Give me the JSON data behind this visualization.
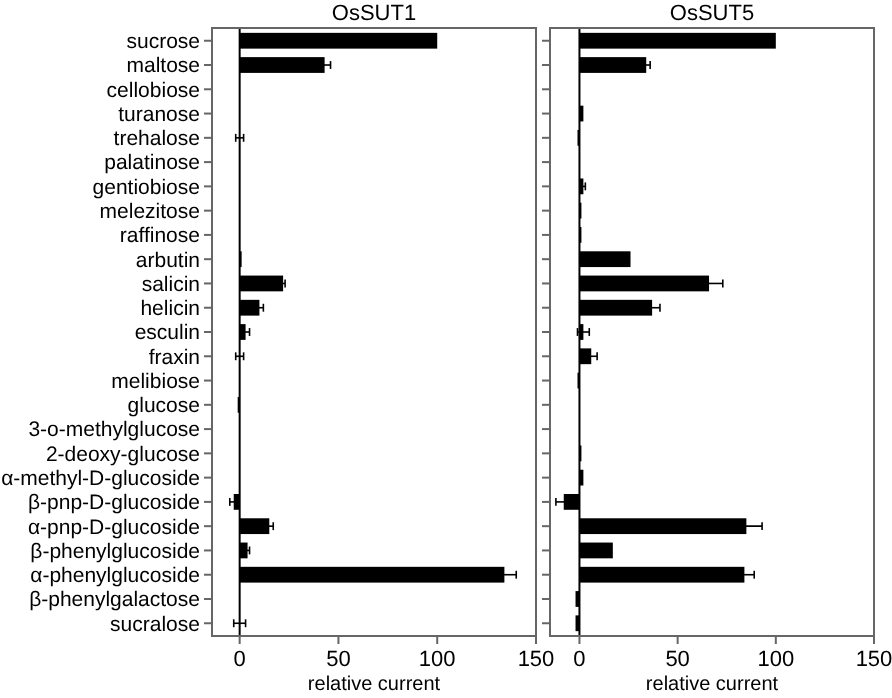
{
  "chart_data": [
    {
      "type": "bar",
      "orientation": "horizontal",
      "title": "OsSUT1",
      "xlabel": "relative current",
      "categories": [
        "sucrose",
        "maltose",
        "cellobiose",
        "turanose",
        "trehalose",
        "palatinose",
        "gentiobiose",
        "melezitose",
        "raffinose",
        "arbutin",
        "salicin",
        "helicin",
        "esculin",
        "fraxin",
        "melibiose",
        "glucose",
        "3-o-methylglucose",
        "2-deoxy-glucose",
        "α-methyl-D-glucoside",
        "β-pnp-D-glucoside",
        "α-pnp-D-glucoside",
        "β-phenylglucoside",
        "α-phenylglucoside",
        "β-phenylgalactose",
        "sucralose"
      ],
      "values": [
        100,
        43,
        0,
        0,
        0,
        0,
        0,
        0,
        0,
        1,
        22,
        10,
        3,
        0,
        0,
        -1,
        0,
        0,
        0,
        -3,
        15,
        4,
        134,
        0,
        0
      ],
      "errors": [
        null,
        3,
        null,
        null,
        2,
        null,
        null,
        null,
        null,
        null,
        1,
        2,
        2,
        2,
        null,
        null,
        null,
        null,
        null,
        2,
        2,
        1,
        6,
        null,
        3
      ],
      "color": "#000000",
      "xlim": [
        -14,
        150
      ],
      "xticks": [
        0,
        50,
        100,
        150
      ]
    },
    {
      "type": "bar",
      "orientation": "horizontal",
      "title": "OsSUT5",
      "xlabel": "relative current",
      "categories": [
        null,
        null,
        null,
        null,
        null,
        null,
        null,
        null,
        null,
        null,
        null,
        null,
        null,
        null,
        null,
        null,
        null,
        null,
        null,
        null,
        null,
        null,
        null,
        null,
        null
      ],
      "values": [
        100,
        34,
        0,
        2,
        -1,
        0,
        2,
        1,
        1,
        26,
        66,
        37,
        2,
        6,
        -1,
        0,
        0,
        1,
        2,
        -8,
        85,
        17,
        84,
        -2,
        -2
      ],
      "errors": [
        null,
        2,
        null,
        null,
        null,
        null,
        1,
        null,
        null,
        null,
        7,
        4,
        3,
        3,
        null,
        null,
        null,
        null,
        null,
        4,
        8,
        null,
        5,
        null,
        null
      ],
      "color": "#000000",
      "xlim": [
        -15,
        150
      ],
      "xticks": [
        0,
        50,
        100,
        150
      ]
    }
  ]
}
